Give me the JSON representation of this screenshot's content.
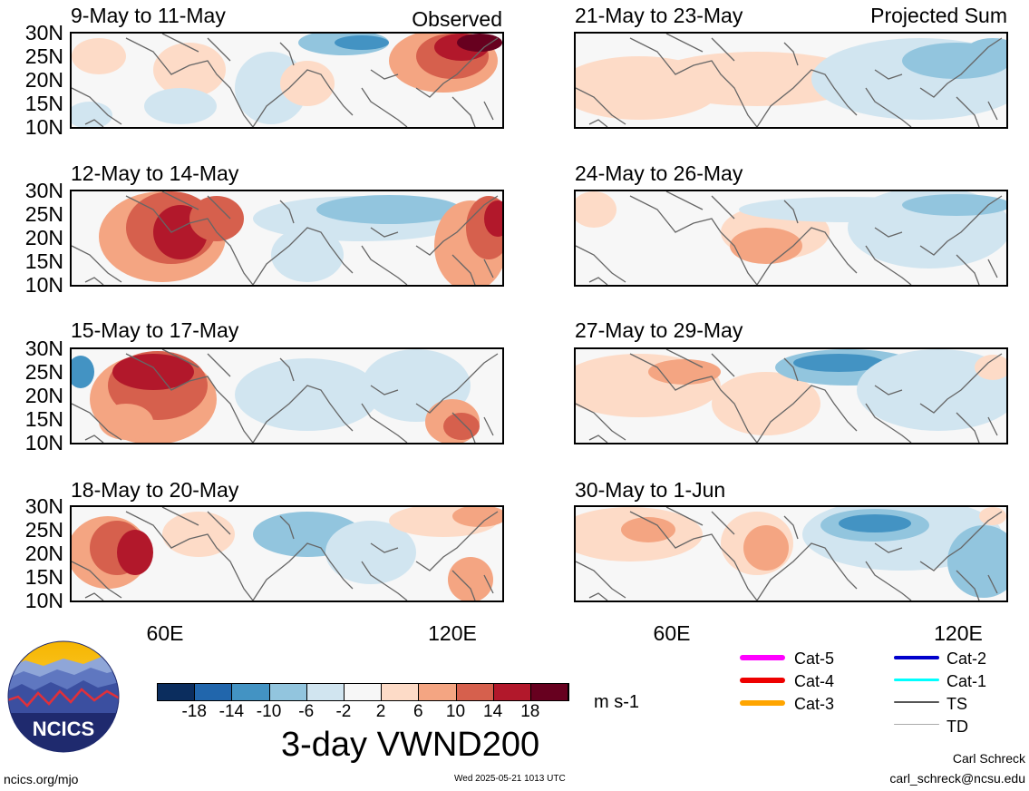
{
  "header": {
    "observed_label": "Observed",
    "projected_label": "Projected Sum"
  },
  "panels": [
    {
      "title": "9-May to 11-May",
      "column": "observed",
      "pattern": 0
    },
    {
      "title": "12-May to 14-May",
      "column": "observed",
      "pattern": 1
    },
    {
      "title": "15-May to 17-May",
      "column": "observed",
      "pattern": 2
    },
    {
      "title": "18-May to 20-May",
      "column": "observed",
      "pattern": 3
    },
    {
      "title": "21-May to 23-May",
      "column": "projected",
      "pattern": 4
    },
    {
      "title": "24-May to 26-May",
      "column": "projected",
      "pattern": 5
    },
    {
      "title": "27-May to 29-May",
      "column": "projected",
      "pattern": 6
    },
    {
      "title": "30-May to 1-Jun",
      "column": "projected",
      "pattern": 7
    }
  ],
  "lat_labels": [
    "30N",
    "25N",
    "20N",
    "15N",
    "10N"
  ],
  "lon_labels": [
    "60E",
    "120E"
  ],
  "colorbar": {
    "colors": [
      "#0b2d5e",
      "#2166ac",
      "#4393c3",
      "#92c5de",
      "#d1e5f0",
      "#f7f7f7",
      "#fddbc7",
      "#f4a582",
      "#d6604d",
      "#b2182b",
      "#67001f"
    ],
    "labels": [
      "-18",
      "-14",
      "-10",
      "-6",
      "-2",
      "2",
      "6",
      "10",
      "14",
      "18"
    ],
    "units": "m s-1"
  },
  "variable_title": "3-day VWND200",
  "legend": [
    {
      "label": "Cat-5",
      "color": "#ff00ff"
    },
    {
      "label": "Cat-4",
      "color": "#ee0000"
    },
    {
      "label": "Cat-3",
      "color": "#ffa500"
    },
    {
      "label": "Cat-2",
      "color": "#0000cc"
    },
    {
      "label": "Cat-1",
      "color": "#00ffff"
    },
    {
      "label": "TS",
      "color": "#555555"
    },
    {
      "label": "TD",
      "color": "#aaaaaa"
    }
  ],
  "logo": {
    "text": "NCICS"
  },
  "footer": {
    "site": "ncics.org/mjo",
    "timestamp": "Wed 2025-05-21 1013 UTC",
    "author": "Carl Schreck",
    "email": "carl_schreck@ncsu.edu"
  }
}
